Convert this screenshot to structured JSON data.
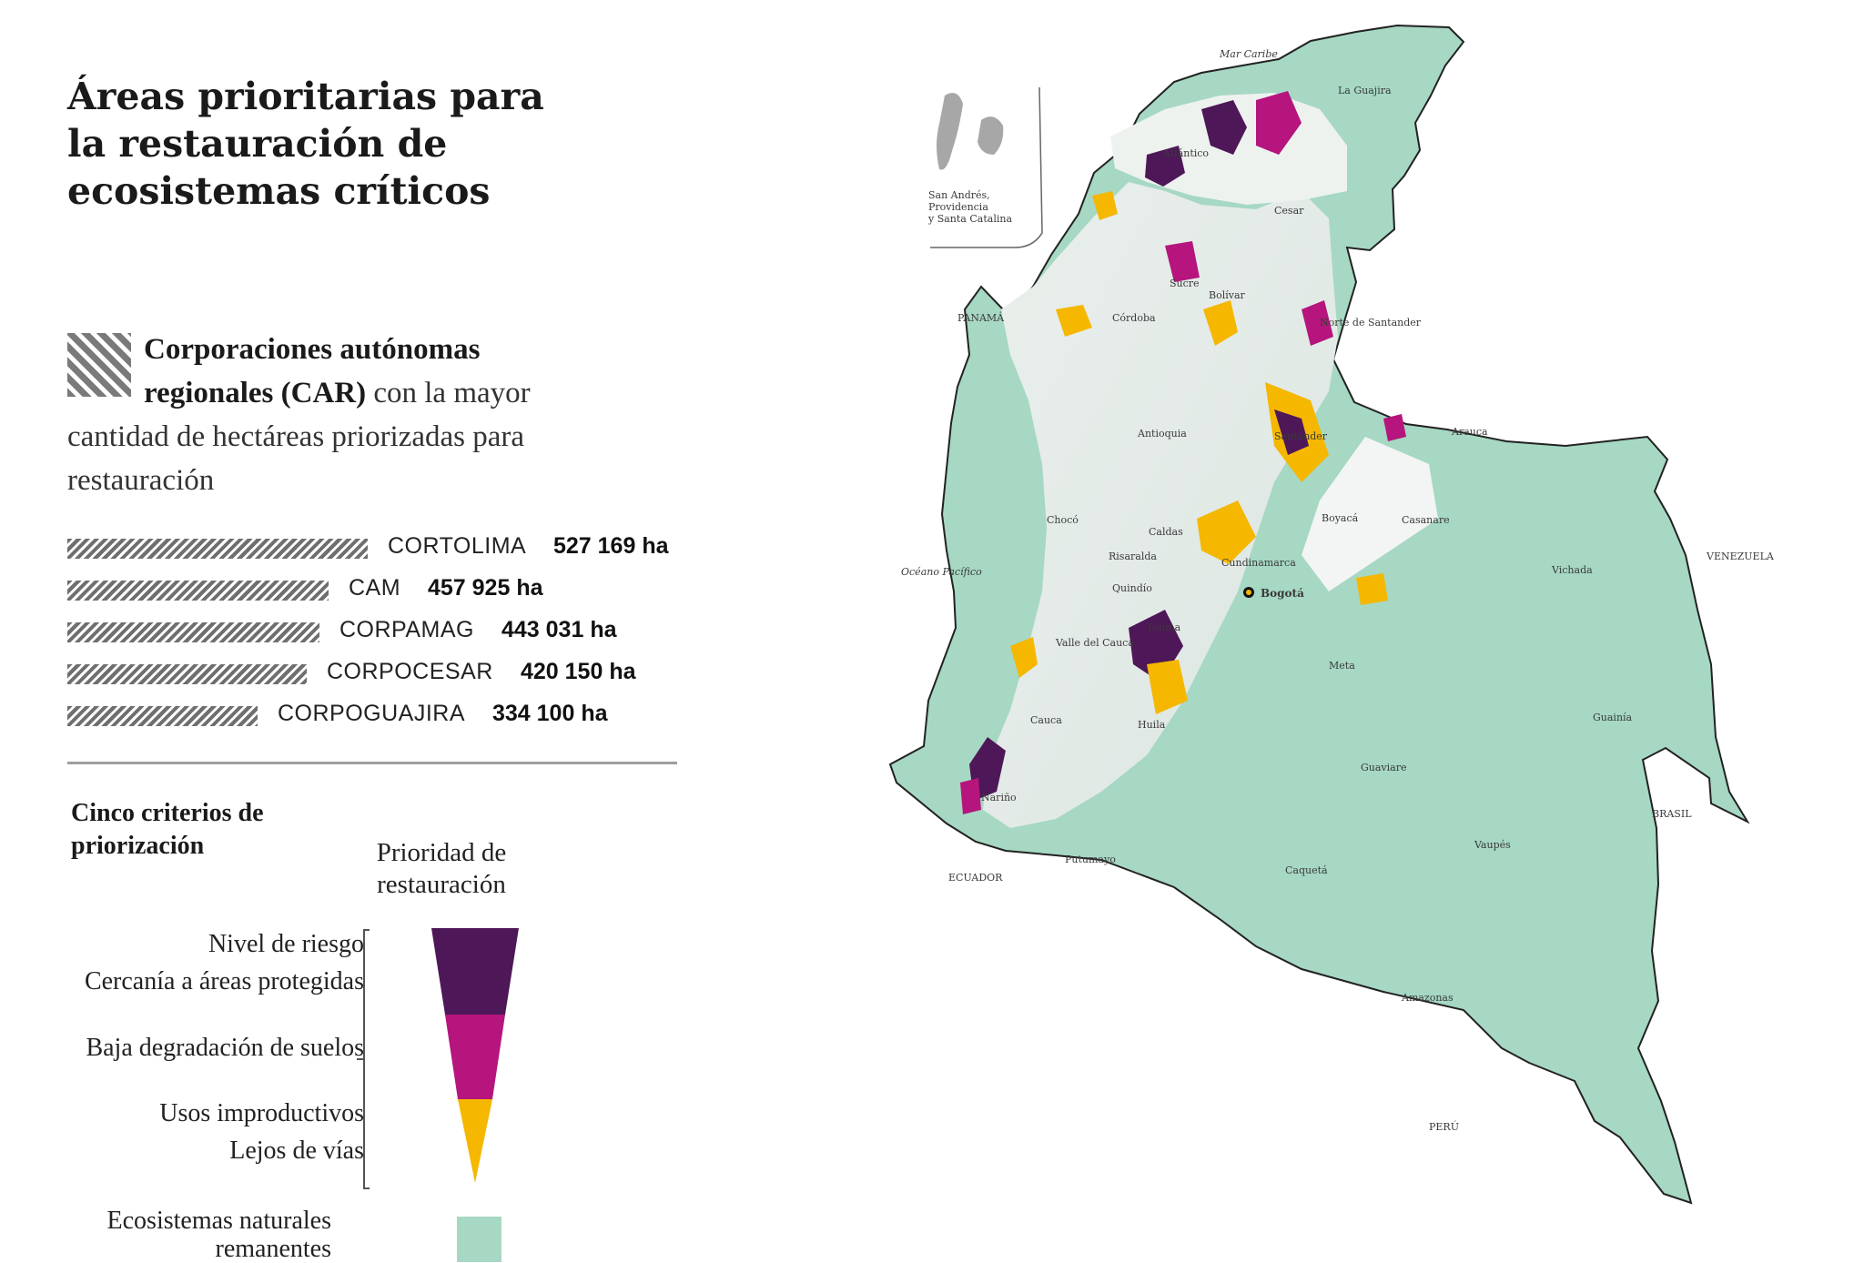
{
  "title": "Áreas prioritarias para la restauración de ecosistemas críticos",
  "car_heading": {
    "bold": "Corporaciones autónomas regionales (CAR)",
    "rest": " con la mayor cantidad de hectáreas priorizadas para restauración"
  },
  "car_rows": [
    {
      "name": "CORTOLIMA",
      "value": "527 169 ha",
      "hectares": 527169
    },
    {
      "name": "CAM",
      "value": "457 925 ha",
      "hectares": 457925
    },
    {
      "name": "CORPAMAG",
      "value": "443 031 ha",
      "hectares": 443031
    },
    {
      "name": "CORPOCESAR",
      "value": "420 150 ha",
      "hectares": 420150
    },
    {
      "name": "CORPOGUAJIRA",
      "value": "334 100 ha",
      "hectares": 334100
    }
  ],
  "criteria_title": "Cinco criterios de priorización",
  "priority_title": "Prioridad de restauración",
  "criteria": [
    "Nivel de riesgo",
    "Cercanía a áreas protegidas",
    "Baja degradación de suelos",
    "Usos improductivos",
    "Lejos de vías"
  ],
  "priority_colors": [
    "#4e1757",
    "#b5157d",
    "#f5b700"
  ],
  "ecosystem_legend": "Ecosistemas naturales remanentes",
  "ecosystem_color": "#a6d8c3",
  "map": {
    "inset_label": "San Andrés, Providencia y Santa Catalina",
    "capital": "Bogotá",
    "seas": [
      "Mar Caribe",
      "Océano Pacífico"
    ],
    "countries": [
      "PANAMÁ",
      "VENEZUELA",
      "BRASIL",
      "ECUADOR",
      "PERÚ"
    ],
    "departments": [
      "La Guajira",
      "Atlántico",
      "Cesar",
      "Sucre",
      "Bolívar",
      "Córdoba",
      "Norte de Santander",
      "Antioquia",
      "Santander",
      "Arauca",
      "Chocó",
      "Caldas",
      "Boyacá",
      "Casanare",
      "Risaralda",
      "Cundinamarca",
      "Quindío",
      "Vichada",
      "Valle del Cauca",
      "Tolima",
      "Meta",
      "Cauca",
      "Huila",
      "Guainía",
      "Guaviare",
      "Nariño",
      "Putumayo",
      "Caquetá",
      "Vaupés",
      "Amazonas"
    ]
  }
}
